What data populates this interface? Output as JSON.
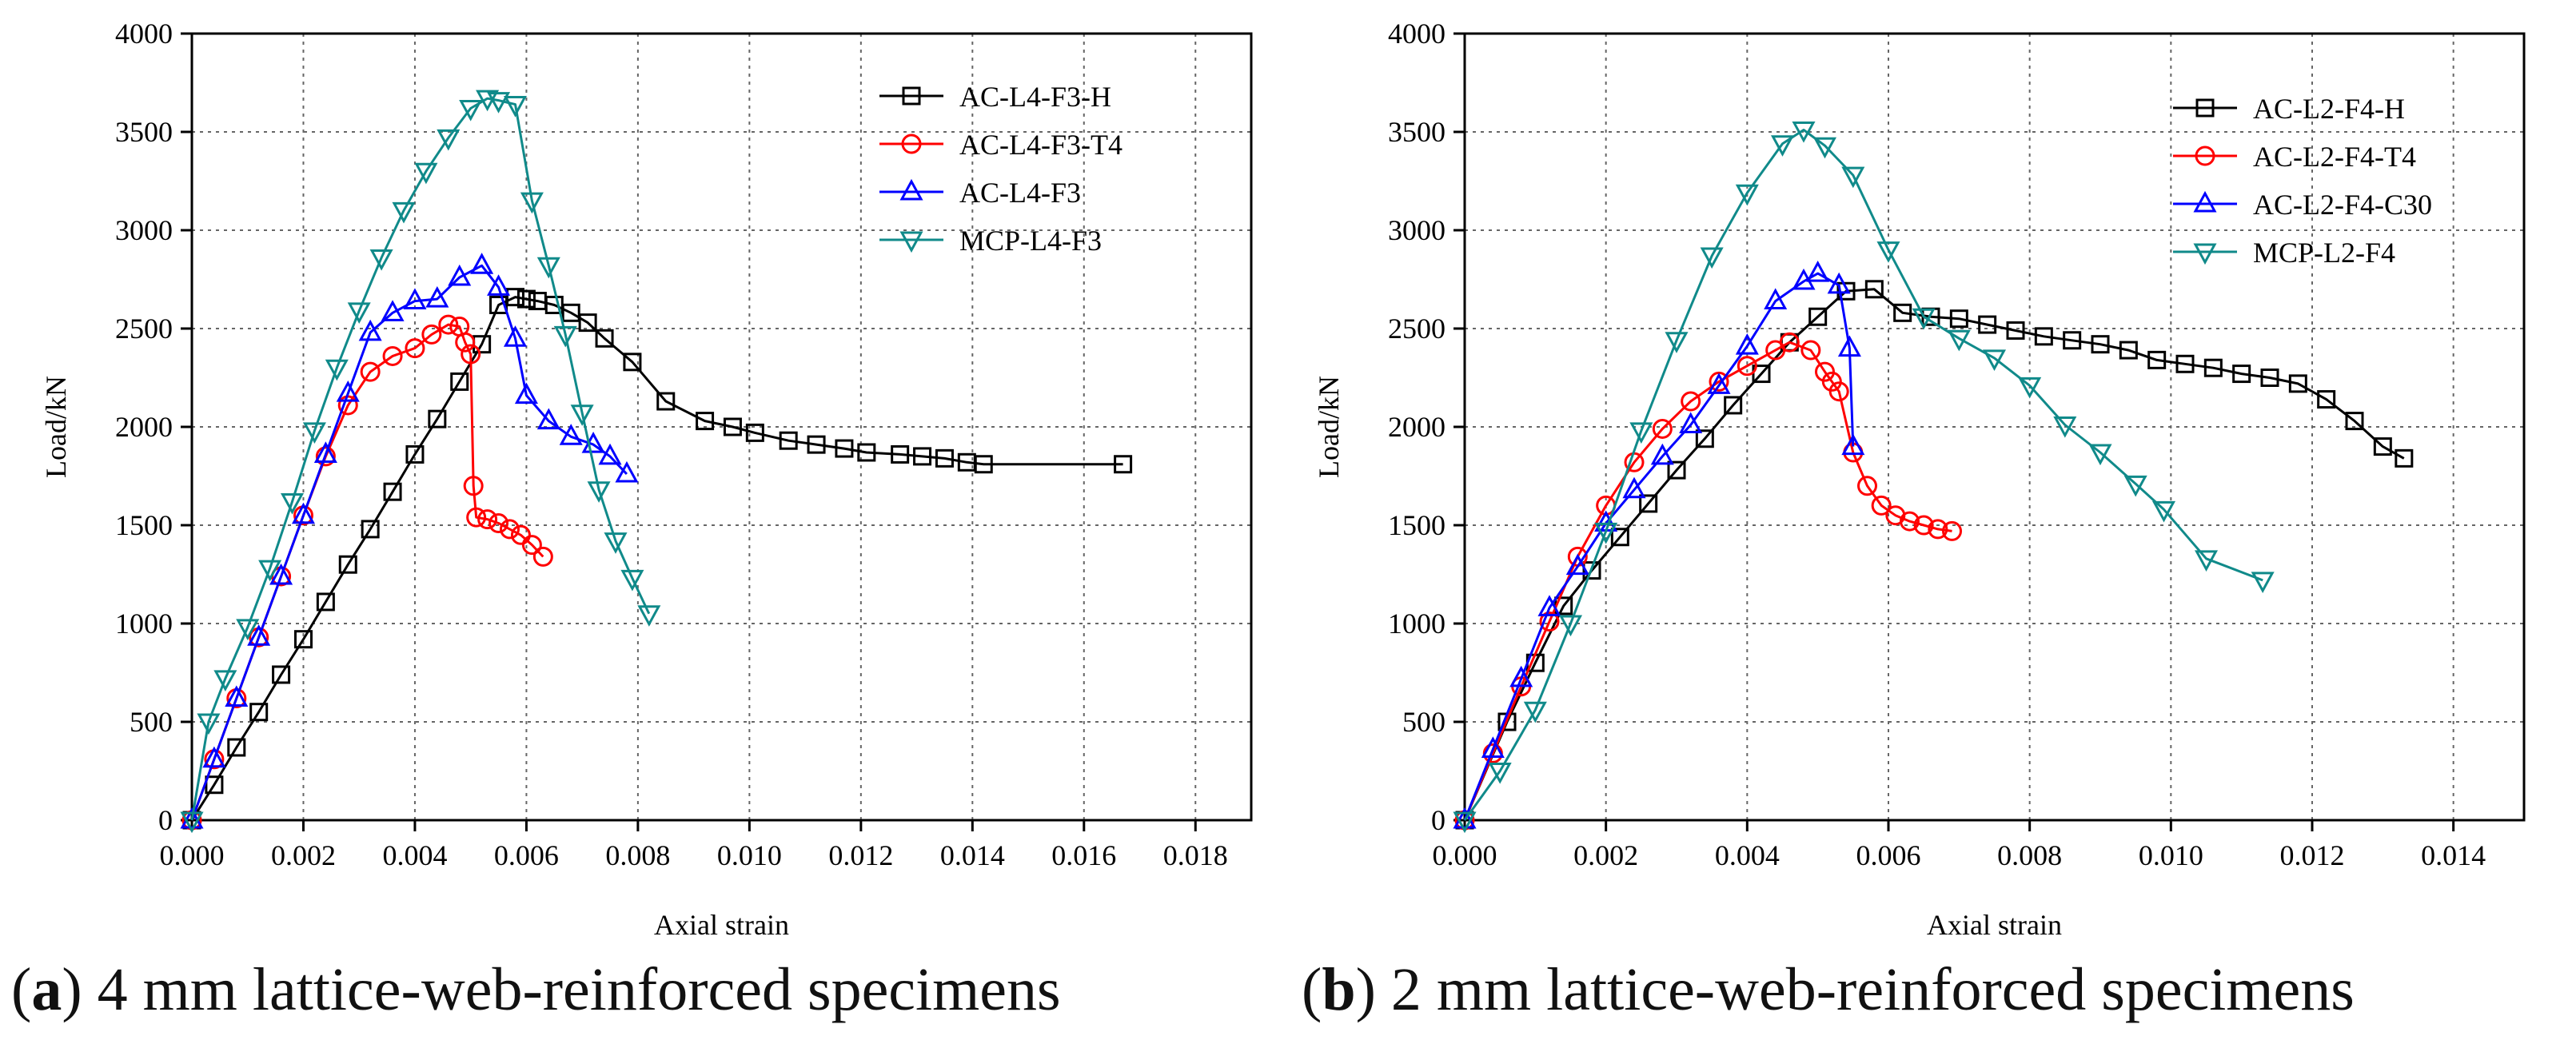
{
  "chart_data": [
    {
      "type": "line",
      "caption_tag": "a",
      "caption_text": "4 mm lattice-web-reinforced specimens",
      "xlabel": "Axial strain",
      "ylabel": "Load/kN",
      "xlim": [
        0,
        0.019
      ],
      "ylim": [
        0,
        4000
      ],
      "xticks": [
        "0.000",
        "0.002",
        "0.004",
        "0.006",
        "0.008",
        "0.010",
        "0.012",
        "0.014",
        "0.016",
        "0.018"
      ],
      "yticks": [
        "0",
        "500",
        "1000",
        "1500",
        "2000",
        "2500",
        "3000",
        "3500",
        "4000"
      ],
      "grid": true,
      "legend_position": "top-right",
      "series": [
        {
          "name": "AC-L4-F3-H",
          "color": "#000000",
          "marker": "square",
          "x": [
            0,
            0.0004,
            0.0008,
            0.0012,
            0.0016,
            0.002,
            0.0024,
            0.0028,
            0.0032,
            0.0036,
            0.004,
            0.0044,
            0.0048,
            0.0052,
            0.0055,
            0.0058,
            0.006,
            0.0062,
            0.0065,
            0.0068,
            0.0071,
            0.0074,
            0.0079,
            0.0085,
            0.0092,
            0.0097,
            0.0101,
            0.0107,
            0.0112,
            0.0117,
            0.0121,
            0.0127,
            0.0131,
            0.0135,
            0.0139,
            0.0142,
            0.0167
          ],
          "y": [
            0,
            180,
            370,
            550,
            740,
            920,
            1110,
            1300,
            1480,
            1670,
            1860,
            2040,
            2230,
            2420,
            2620,
            2660,
            2650,
            2640,
            2620,
            2580,
            2530,
            2450,
            2330,
            2130,
            2030,
            2000,
            1970,
            1930,
            1910,
            1890,
            1870,
            1860,
            1850,
            1840,
            1820,
            1810,
            1810
          ]
        },
        {
          "name": "AC-L4-F3-T4",
          "color": "#ff0000",
          "marker": "circle",
          "x": [
            0,
            0.0004,
            0.0008,
            0.0012,
            0.0016,
            0.002,
            0.0024,
            0.0028,
            0.0032,
            0.0036,
            0.004,
            0.0043,
            0.0046,
            0.0048,
            0.0049,
            0.005,
            0.00505,
            0.0051,
            0.0053,
            0.0055,
            0.0057,
            0.0059,
            0.0061,
            0.0063
          ],
          "y": [
            0,
            310,
            620,
            930,
            1240,
            1550,
            1850,
            2110,
            2280,
            2360,
            2400,
            2470,
            2520,
            2510,
            2430,
            2370,
            1700,
            1540,
            1530,
            1510,
            1480,
            1450,
            1400,
            1340
          ]
        },
        {
          "name": "AC-L4-F3",
          "color": "#0000ff",
          "marker": "triangle-up",
          "x": [
            0,
            0.0004,
            0.0008,
            0.0012,
            0.0016,
            0.002,
            0.0024,
            0.0028,
            0.0032,
            0.0036,
            0.004,
            0.0044,
            0.0048,
            0.0052,
            0.0055,
            0.0058,
            0.006,
            0.0064,
            0.0068,
            0.0072,
            0.0075,
            0.0078
          ],
          "y": [
            0,
            310,
            620,
            930,
            1240,
            1550,
            1860,
            2170,
            2480,
            2580,
            2640,
            2650,
            2760,
            2820,
            2710,
            2450,
            2160,
            2030,
            1950,
            1910,
            1850,
            1760
          ]
        },
        {
          "name": "MCP-L4-F3",
          "color": "#108a8a",
          "marker": "triangle-down",
          "x": [
            0,
            0.0003,
            0.0006,
            0.001,
            0.0014,
            0.0018,
            0.0022,
            0.0026,
            0.003,
            0.0034,
            0.0038,
            0.0042,
            0.0046,
            0.005,
            0.0053,
            0.0055,
            0.0058,
            0.0061,
            0.0064,
            0.0067,
            0.007,
            0.0073,
            0.0076,
            0.0079,
            0.0082
          ],
          "y": [
            0,
            500,
            720,
            980,
            1280,
            1620,
            1980,
            2300,
            2590,
            2860,
            3100,
            3300,
            3470,
            3620,
            3670,
            3660,
            3640,
            3150,
            2820,
            2470,
            2070,
            1680,
            1420,
            1230,
            1050
          ]
        }
      ]
    },
    {
      "type": "line",
      "caption_tag": "b",
      "caption_text": "2 mm lattice-web-reinforced specimens",
      "xlabel": "Axial strain",
      "ylabel": "Load/kN",
      "xlim": [
        0,
        0.015
      ],
      "ylim": [
        0,
        4000
      ],
      "xticks": [
        "0.000",
        "0.002",
        "0.004",
        "0.006",
        "0.008",
        "0.010",
        "0.012",
        "0.014"
      ],
      "yticks": [
        "0",
        "500",
        "1000",
        "1500",
        "2000",
        "2500",
        "3000",
        "3500",
        "4000"
      ],
      "grid": true,
      "legend_position": "top-right",
      "series": [
        {
          "name": "AC-L2-F4-H",
          "color": "#000000",
          "marker": "square",
          "x": [
            0,
            0.0006,
            0.001,
            0.0014,
            0.0018,
            0.0022,
            0.0026,
            0.003,
            0.0034,
            0.0038,
            0.0042,
            0.0046,
            0.005,
            0.0054,
            0.0058,
            0.0062,
            0.0066,
            0.007,
            0.0074,
            0.0078,
            0.0082,
            0.0086,
            0.009,
            0.0094,
            0.0098,
            0.0102,
            0.0106,
            0.011,
            0.0114,
            0.0118,
            0.0122,
            0.0126,
            0.013,
            0.0133
          ],
          "y": [
            0,
            500,
            800,
            1090,
            1270,
            1440,
            1610,
            1780,
            1940,
            2110,
            2270,
            2430,
            2560,
            2690,
            2700,
            2580,
            2560,
            2550,
            2520,
            2490,
            2460,
            2440,
            2420,
            2390,
            2340,
            2320,
            2300,
            2270,
            2250,
            2220,
            2140,
            2030,
            1900,
            1840
          ]
        },
        {
          "name": "AC-L2-F4-T4",
          "color": "#ff0000",
          "marker": "circle",
          "x": [
            0,
            0.0004,
            0.0008,
            0.0012,
            0.0016,
            0.002,
            0.0024,
            0.0028,
            0.0032,
            0.0036,
            0.004,
            0.0044,
            0.0046,
            0.0049,
            0.0051,
            0.0052,
            0.0053,
            0.0055,
            0.0057,
            0.0059,
            0.0061,
            0.0063,
            0.0065,
            0.0067,
            0.0069
          ],
          "y": [
            0,
            340,
            680,
            1010,
            1340,
            1600,
            1820,
            1990,
            2130,
            2230,
            2310,
            2390,
            2430,
            2390,
            2280,
            2230,
            2180,
            1870,
            1700,
            1600,
            1550,
            1520,
            1500,
            1480,
            1470
          ]
        },
        {
          "name": "AC-L2-F4-C30",
          "color": "#0000ff",
          "marker": "triangle-up",
          "x": [
            0,
            0.0004,
            0.0008,
            0.0012,
            0.0016,
            0.002,
            0.0024,
            0.0028,
            0.0032,
            0.0036,
            0.004,
            0.0044,
            0.0048,
            0.005,
            0.0053,
            0.00545,
            0.0055
          ],
          "y": [
            0,
            360,
            720,
            1080,
            1290,
            1510,
            1680,
            1850,
            2010,
            2210,
            2410,
            2640,
            2740,
            2780,
            2720,
            2400,
            1900
          ]
        },
        {
          "name": "MCP-L2-F4",
          "color": "#108a8a",
          "marker": "triangle-down",
          "x": [
            0,
            0.0005,
            0.001,
            0.0015,
            0.002,
            0.0025,
            0.003,
            0.0035,
            0.004,
            0.0045,
            0.0048,
            0.0051,
            0.0055,
            0.006,
            0.0065,
            0.007,
            0.0075,
            0.008,
            0.0085,
            0.009,
            0.0095,
            0.0099,
            0.0105,
            0.0113
          ],
          "y": [
            0,
            250,
            560,
            1000,
            1470,
            1980,
            2440,
            2870,
            3190,
            3440,
            3510,
            3430,
            3280,
            2900,
            2560,
            2450,
            2350,
            2210,
            2010,
            1870,
            1710,
            1580,
            1330,
            1220
          ]
        }
      ]
    }
  ]
}
